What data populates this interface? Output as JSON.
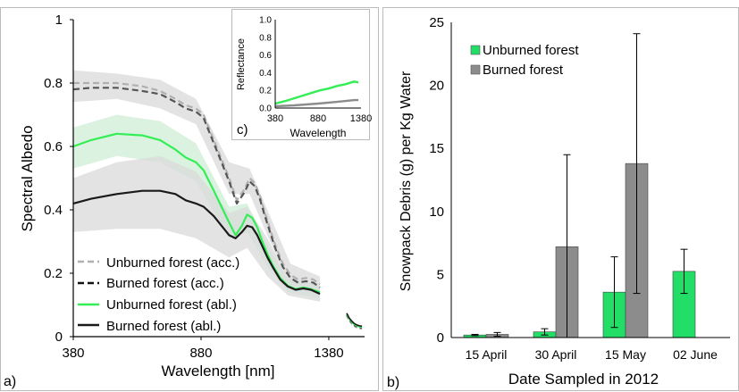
{
  "colors": {
    "unburned_green": "#33ee55",
    "burned_black": "#1a1a1a",
    "dashed_light": "#b0b0b0",
    "dashed_dark": "#555555",
    "band_gray": "#d9d9d9",
    "band_green": "#cfeed6",
    "bar_green": "#22dd66",
    "bar_gray": "#8c8c8c"
  },
  "chart_data": [
    {
      "panel": "a)",
      "type": "line",
      "xlabel": "Wavelength [nm]",
      "ylabel": "Spectral Albedo",
      "xlim": [
        380,
        1520
      ],
      "ylim": [
        0,
        1
      ],
      "xticks": [
        380,
        880,
        1380
      ],
      "yticks": [
        0,
        0.2,
        0.4,
        0.6,
        0.8,
        1
      ],
      "ytick_labels": [
        "0",
        "0.2",
        "0.4",
        "0.6",
        "0.8",
        "1"
      ],
      "legend_position": "bottom-left",
      "series": [
        {
          "name": "Unburned forest (acc.)",
          "style": "dashed-light",
          "x": [
            380,
            450,
            550,
            650,
            720,
            780,
            820,
            860,
            890,
            930,
            960,
            990,
            1020,
            1050,
            1070,
            1090,
            1110,
            1130,
            1150,
            1170,
            1200,
            1230,
            1260,
            1290,
            1320,
            1345
          ],
          "y": [
            0.8,
            0.8,
            0.8,
            0.79,
            0.775,
            0.75,
            0.73,
            0.72,
            0.7,
            0.62,
            0.56,
            0.5,
            0.43,
            0.465,
            0.5,
            0.485,
            0.445,
            0.39,
            0.34,
            0.29,
            0.23,
            0.195,
            0.18,
            0.185,
            0.18,
            0.165
          ]
        },
        {
          "name": "Burned forest (acc.)",
          "style": "dashed-dark",
          "x": [
            380,
            450,
            550,
            650,
            720,
            780,
            820,
            860,
            890,
            930,
            960,
            990,
            1020,
            1050,
            1070,
            1090,
            1110,
            1130,
            1150,
            1170,
            1200,
            1230,
            1260,
            1290,
            1320,
            1345
          ],
          "y": [
            0.78,
            0.785,
            0.785,
            0.775,
            0.765,
            0.74,
            0.72,
            0.71,
            0.69,
            0.61,
            0.55,
            0.49,
            0.42,
            0.455,
            0.49,
            0.475,
            0.435,
            0.38,
            0.33,
            0.28,
            0.22,
            0.185,
            0.17,
            0.175,
            0.17,
            0.155
          ]
        },
        {
          "name": "Unburned forest (abl.)",
          "style": "solid-green",
          "x": [
            380,
            450,
            550,
            650,
            720,
            780,
            820,
            860,
            890,
            930,
            960,
            990,
            1015,
            1040,
            1060,
            1080,
            1100,
            1120,
            1140,
            1160,
            1190,
            1220,
            1250,
            1280,
            1310,
            1345
          ],
          "y": [
            0.6,
            0.62,
            0.64,
            0.635,
            0.62,
            0.59,
            0.565,
            0.55,
            0.525,
            0.46,
            0.41,
            0.36,
            0.32,
            0.35,
            0.385,
            0.375,
            0.345,
            0.3,
            0.26,
            0.225,
            0.185,
            0.16,
            0.15,
            0.155,
            0.15,
            0.14
          ]
        },
        {
          "name": "Burned forest (abl.)",
          "style": "solid-black",
          "x": [
            380,
            450,
            550,
            650,
            720,
            780,
            820,
            860,
            890,
            930,
            960,
            990,
            1015,
            1040,
            1060,
            1080,
            1100,
            1120,
            1140,
            1160,
            1190,
            1220,
            1250,
            1280,
            1310,
            1345
          ],
          "y": [
            0.42,
            0.435,
            0.45,
            0.46,
            0.46,
            0.45,
            0.43,
            0.42,
            0.41,
            0.38,
            0.35,
            0.32,
            0.31,
            0.33,
            0.35,
            0.345,
            0.32,
            0.285,
            0.25,
            0.22,
            0.18,
            0.158,
            0.148,
            0.152,
            0.148,
            0.135
          ]
        }
      ],
      "tail": {
        "x": [
          1450,
          1460,
          1470,
          1480,
          1490,
          1500,
          1510
        ],
        "y": [
          0.065,
          0.05,
          0.04,
          0.032,
          0.028,
          0.025,
          0.024
        ]
      },
      "bands": [
        {
          "style": "gray",
          "x": [
            380,
            550,
            720,
            860,
            990,
            1070,
            1150,
            1230,
            1345
          ],
          "upper": [
            0.84,
            0.83,
            0.81,
            0.75,
            0.55,
            0.53,
            0.38,
            0.23,
            0.19
          ],
          "lower": [
            0.74,
            0.75,
            0.72,
            0.67,
            0.45,
            0.45,
            0.3,
            0.17,
            0.14
          ]
        },
        {
          "style": "green",
          "x": [
            380,
            550,
            720,
            860,
            990,
            1060,
            1140,
            1220,
            1345
          ],
          "upper": [
            0.66,
            0.7,
            0.68,
            0.61,
            0.41,
            0.42,
            0.29,
            0.18,
            0.16
          ],
          "lower": [
            0.53,
            0.57,
            0.55,
            0.49,
            0.31,
            0.33,
            0.22,
            0.14,
            0.12
          ]
        },
        {
          "style": "gray",
          "x": [
            380,
            550,
            720,
            860,
            990,
            1060,
            1140,
            1220,
            1345
          ],
          "upper": [
            0.5,
            0.55,
            0.57,
            0.52,
            0.39,
            0.41,
            0.31,
            0.19,
            0.16
          ],
          "lower": [
            0.33,
            0.34,
            0.34,
            0.31,
            0.25,
            0.28,
            0.19,
            0.13,
            0.11
          ]
        }
      ]
    },
    {
      "panel": "c)",
      "type": "line",
      "xlabel": "Wavelength",
      "ylabel": "Reflectance",
      "xlim": [
        380,
        1380
      ],
      "ylim": [
        0,
        1
      ],
      "xticks": [
        380,
        880,
        1380
      ],
      "yticks": [
        0,
        0.2,
        0.4,
        0.6,
        0.8,
        1
      ],
      "ytick_labels": [
        "0.0",
        "0.2",
        "0.4",
        "0.6",
        "0.8",
        "1.0"
      ],
      "series": [
        {
          "color": "green",
          "x": [
            380,
            500,
            600,
            700,
            800,
            900,
            1000,
            1100,
            1200,
            1300,
            1350
          ],
          "y": [
            0.05,
            0.08,
            0.11,
            0.14,
            0.17,
            0.2,
            0.22,
            0.25,
            0.27,
            0.3,
            0.29
          ]
        },
        {
          "color": "gray",
          "x": [
            380,
            600,
            880,
            1100,
            1300,
            1350
          ],
          "y": [
            0.02,
            0.03,
            0.05,
            0.07,
            0.09,
            0.09
          ]
        }
      ]
    },
    {
      "panel": "b)",
      "type": "bar",
      "xlabel": "Date Sampled in 2012",
      "ylabel": "Snowpack Debris (g) per Kg Water",
      "ylim": [
        0,
        25
      ],
      "yticks": [
        0,
        5,
        10,
        15,
        20,
        25
      ],
      "legend_position": "top-left",
      "categories": [
        "15 April",
        "30 April",
        "15 May",
        "02 June"
      ],
      "series": [
        {
          "name": "Unburned forest",
          "color": "green",
          "values": [
            0.2,
            0.45,
            3.6,
            5.25
          ],
          "error": [
            0.05,
            0.25,
            2.8,
            1.75
          ]
        },
        {
          "name": "Burned forest",
          "color": "gray",
          "values": [
            0.25,
            7.2,
            13.8,
            null
          ],
          "error": [
            0.15,
            7.3,
            10.3,
            null
          ]
        }
      ]
    }
  ]
}
